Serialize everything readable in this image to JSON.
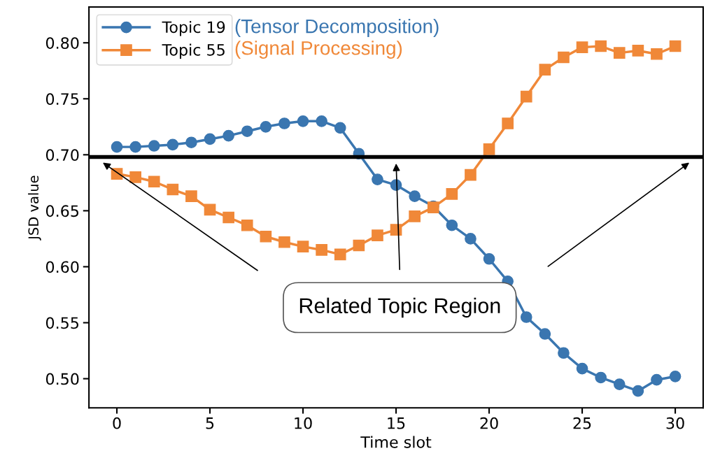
{
  "chart_data": {
    "type": "line",
    "xlabel": "Time slot",
    "ylabel": "JSD value",
    "x": [
      0,
      1,
      2,
      3,
      4,
      5,
      6,
      7,
      8,
      9,
      10,
      11,
      12,
      13,
      14,
      15,
      16,
      17,
      18,
      19,
      20,
      21,
      22,
      23,
      24,
      25,
      26,
      27,
      28,
      29,
      30
    ],
    "series": [
      {
        "name": "Topic 19",
        "color": "#3a76b0",
        "marker": "circle",
        "values": [
          0.707,
          0.707,
          0.708,
          0.709,
          0.711,
          0.714,
          0.717,
          0.721,
          0.725,
          0.728,
          0.73,
          0.73,
          0.724,
          0.701,
          0.678,
          0.673,
          0.663,
          0.654,
          0.637,
          0.625,
          0.607,
          0.587,
          0.555,
          0.54,
          0.523,
          0.509,
          0.501,
          0.495,
          0.489,
          0.499,
          0.502
        ]
      },
      {
        "name": "Topic 55",
        "color": "#f08838",
        "marker": "square",
        "values": [
          0.683,
          0.68,
          0.676,
          0.669,
          0.663,
          0.651,
          0.644,
          0.637,
          0.627,
          0.622,
          0.618,
          0.615,
          0.611,
          0.619,
          0.628,
          0.633,
          0.645,
          0.653,
          0.665,
          0.682,
          0.705,
          0.728,
          0.752,
          0.776,
          0.787,
          0.796,
          0.797,
          0.791,
          0.793,
          0.79,
          0.797
        ]
      }
    ],
    "annotations": [
      "(Tensor Decomposition)",
      "(Signal Processing)",
      "Related Topic Region"
    ],
    "ref_lines": [
      {
        "axis": "y",
        "value": 0.698,
        "color": "#000000",
        "line_style": "solid"
      }
    ],
    "xlim": [
      -1.5,
      31.5
    ],
    "ylim": [
      0.474,
      0.832
    ],
    "xticks": [
      0,
      5,
      10,
      15,
      20,
      25,
      30
    ],
    "yticks": [
      {
        "value": 0.5,
        "label": "0.50"
      },
      {
        "value": 0.55,
        "label": "0.55"
      },
      {
        "value": 0.6,
        "label": "0.60"
      },
      {
        "value": 0.65,
        "label": "0.65"
      },
      {
        "value": 0.7,
        "label": "0.70"
      },
      {
        "value": 0.75,
        "label": "0.75"
      },
      {
        "value": 0.8,
        "label": "0.80"
      }
    ],
    "grid": false,
    "legend": "top left",
    "line_style": "solid"
  }
}
